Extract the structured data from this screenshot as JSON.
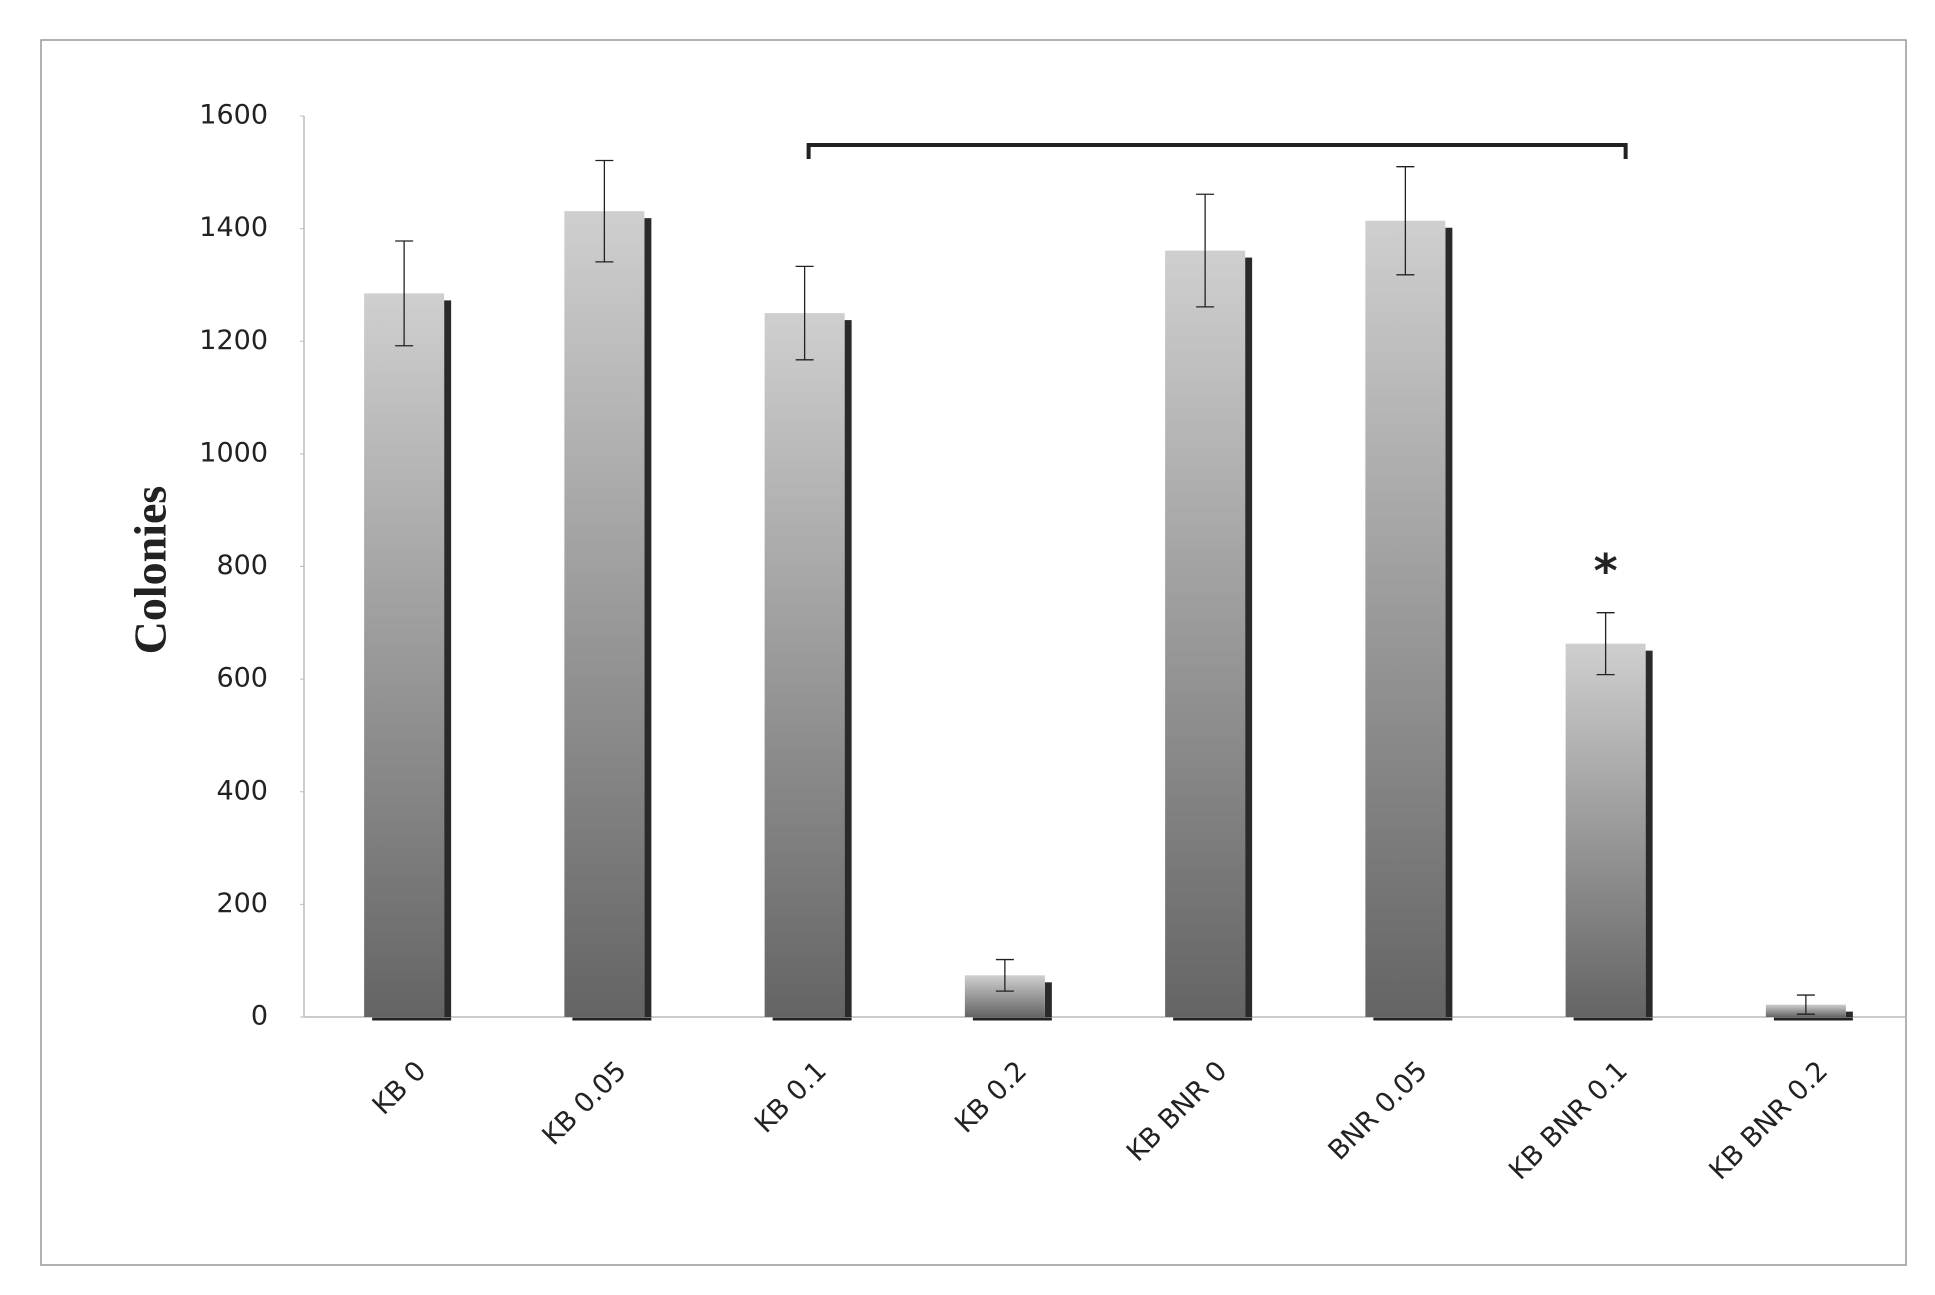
{
  "chart_data": {
    "type": "bar",
    "y_label": "Colonies",
    "categories": [
      "KB 0",
      "KB 0.05",
      "KB  0.1",
      "KB 0.2",
      "KB BNR 0",
      "BNR 0.05",
      "KB BNR 0.1",
      "KB BNR 0.2"
    ],
    "values": [
      1285,
      1431,
      1250,
      74,
      1361,
      1414,
      663,
      22
    ],
    "errors": [
      93,
      90,
      83,
      28,
      100,
      96,
      55,
      17
    ],
    "annotation": "*",
    "ylim": [
      0,
      1600
    ],
    "yticks": [
      0,
      200,
      400,
      600,
      800,
      1000,
      1200,
      1400,
      1600
    ],
    "grid": false
  }
}
